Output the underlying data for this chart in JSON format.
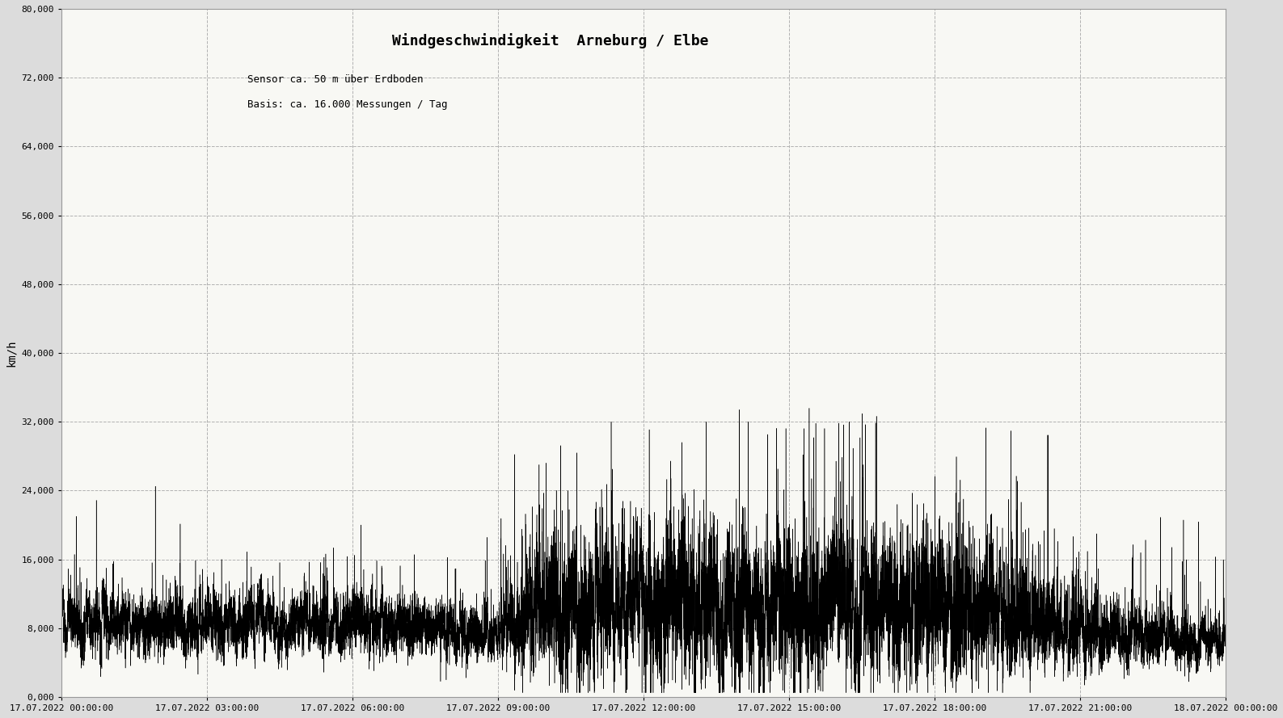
{
  "title": "Windgeschwindigkeit  Arneburg / Elbe",
  "subtitle1": "Sensor ca. 50 m über Erdboden",
  "subtitle2": "Basis: ca. 16.000 Messungen / Tag",
  "ylabel": "km/h",
  "ylim": [
    0,
    80000
  ],
  "yticks": [
    0,
    8000,
    16000,
    24000,
    32000,
    40000,
    48000,
    56000,
    64000,
    72000,
    80000
  ],
  "ytick_labels": [
    "0,000",
    "8,000",
    "16,000",
    "24,000",
    "32,000",
    "40,000",
    "48,000",
    "56,000",
    "64,000",
    "72,000",
    "80,000"
  ],
  "xtick_labels": [
    "17.07.2022 00:00:00",
    "17.07.2022 03:00:00",
    "17.07.2022 06:00:00",
    "17.07.2022 09:00:00",
    "17.07.2022 12:00:00",
    "17.07.2022 15:00:00",
    "17.07.2022 18:00:00",
    "17.07.2022 21:00:00",
    "18.07.2022 00:00:00"
  ],
  "background_color": "#dcdcdc",
  "plot_background": "#f8f8f4",
  "line_color": "#000000",
  "grid_color": "#aaaaaa",
  "title_fontsize": 13,
  "subtitle_fontsize": 9,
  "ylabel_fontsize": 10,
  "tick_fontsize": 8,
  "seed": 42,
  "n_points": 17280
}
